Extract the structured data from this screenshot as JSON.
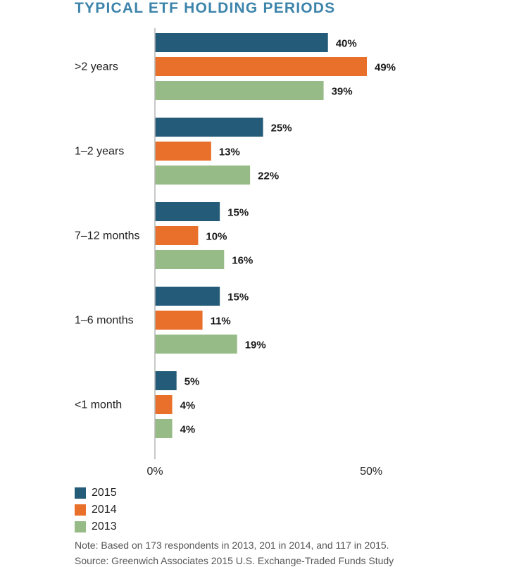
{
  "title": "TYPICAL ETF HOLDING PERIODS",
  "chart_data": {
    "type": "bar",
    "orientation": "horizontal",
    "title": "TYPICAL ETF HOLDING PERIODS",
    "categories": [
      ">2 years",
      "1–2 years",
      "7–12 months",
      "1–6 months",
      "<1 month"
    ],
    "series": [
      {
        "name": "2015",
        "color": "#245b78",
        "values": [
          40,
          25,
          15,
          15,
          5
        ]
      },
      {
        "name": "2014",
        "color": "#e8702a",
        "values": [
          49,
          13,
          10,
          11,
          4
        ]
      },
      {
        "name": "2013",
        "color": "#96bb86",
        "values": [
          39,
          22,
          16,
          19,
          4
        ]
      }
    ],
    "value_suffix": "%",
    "xlim": [
      0,
      50
    ],
    "xticks": [
      "0%",
      "50%"
    ],
    "grid": false,
    "legend_position": "bottom-left"
  },
  "legend": [
    {
      "label": "2015",
      "color": "#245b78"
    },
    {
      "label": "2014",
      "color": "#e8702a"
    },
    {
      "label": "2013",
      "color": "#96bb86"
    }
  ],
  "note": "Note: Based on 173 respondents in 2013, 201 in 2014, and 117 in 2015.",
  "source": "Source: Greenwich Associates 2015 U.S. Exchange-Traded Funds Study"
}
